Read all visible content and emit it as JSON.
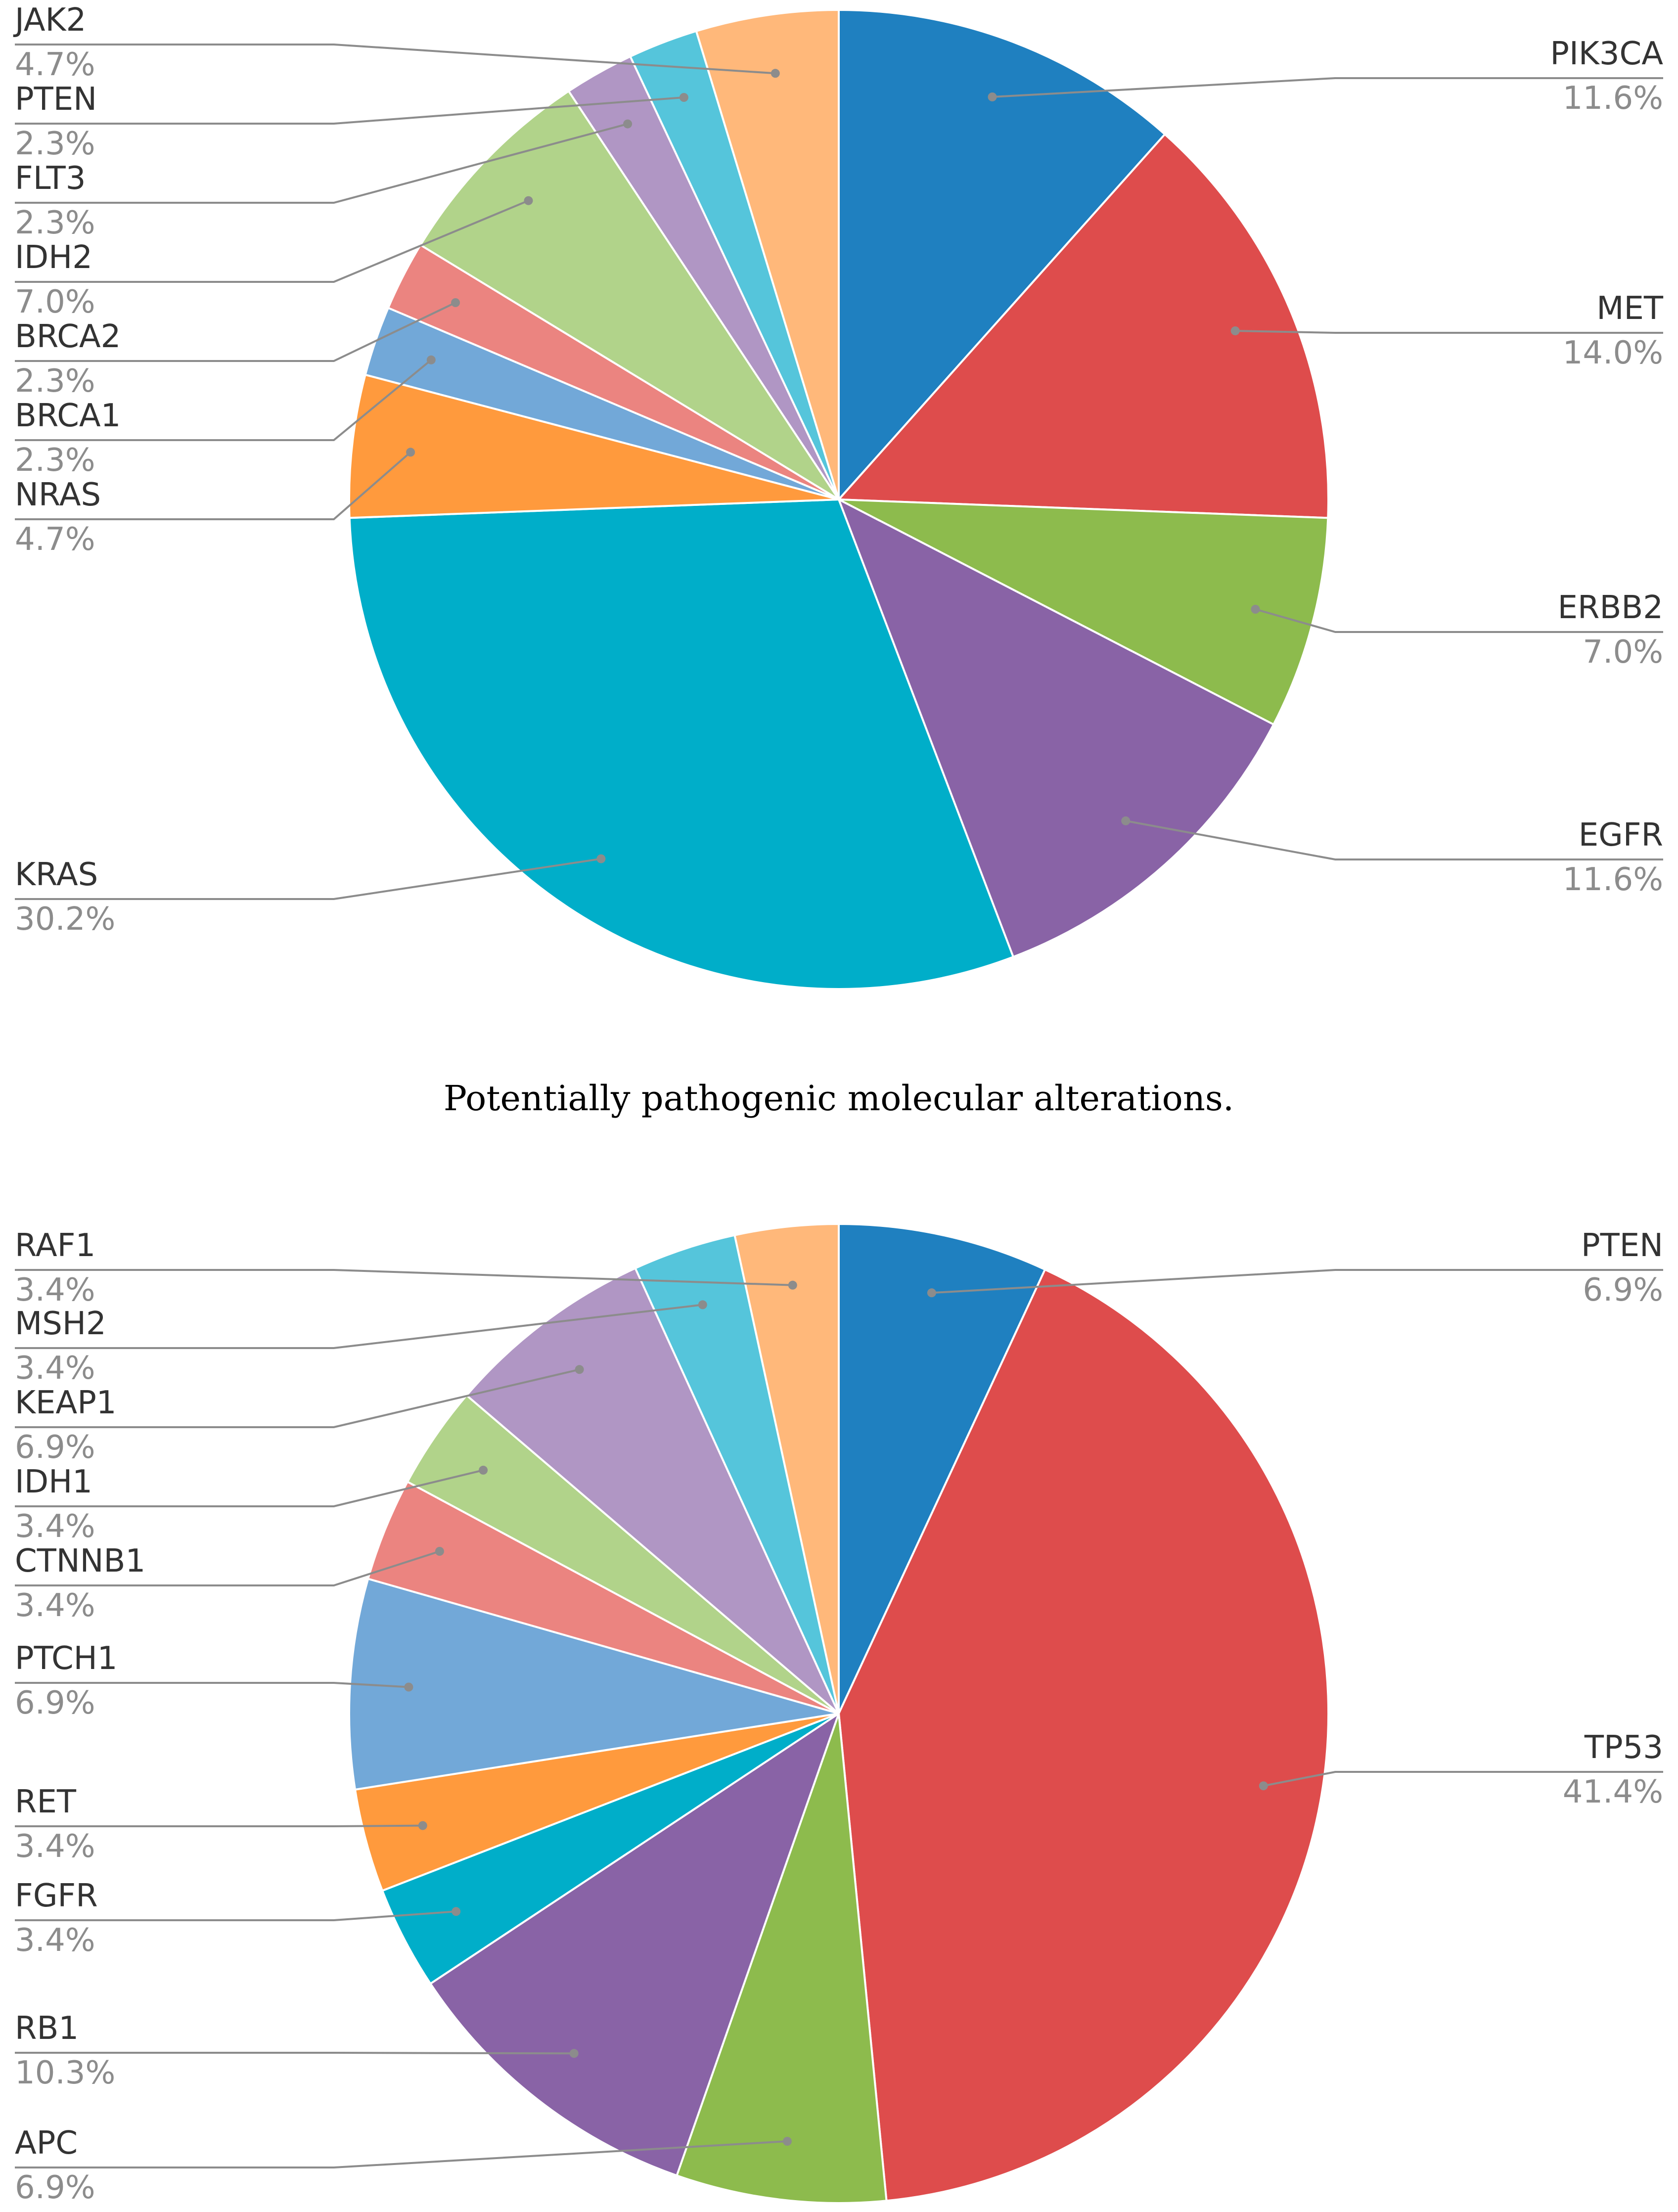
{
  "figure": {
    "caption": "Potentially pathogenic molecular alterations."
  },
  "chart_data": [
    {
      "type": "pie",
      "title": "",
      "slices": [
        {
          "label": "PIK3CA",
          "value": 11.6,
          "display": "11.6%",
          "color": "#1f80c0"
        },
        {
          "label": "MET",
          "value": 14.0,
          "display": "14.0%",
          "color": "#de4c4c"
        },
        {
          "label": "ERBB2",
          "value": 7.0,
          "display": "7.0%",
          "color": "#8dbb4d"
        },
        {
          "label": "EGFR",
          "value": 11.6,
          "display": "11.6%",
          "color": "#8963a6"
        },
        {
          "label": "KRAS",
          "value": 30.2,
          "display": "30.2%",
          "color": "#00aec9"
        },
        {
          "label": "NRAS",
          "value": 4.7,
          "display": "4.7%",
          "color": "#ff9a3d"
        },
        {
          "label": "BRCA1",
          "value": 2.3,
          "display": "2.3%",
          "color": "#72a8d8"
        },
        {
          "label": "BRCA2",
          "value": 2.3,
          "display": "2.3%",
          "color": "#eb8480"
        },
        {
          "label": "IDH2",
          "value": 7.0,
          "display": "7.0%",
          "color": "#b1d38a"
        },
        {
          "label": "FLT3",
          "value": 2.3,
          "display": "2.3%",
          "color": "#b096c4"
        },
        {
          "label": "PTEN",
          "value": 2.3,
          "display": "2.3%",
          "color": "#55c5db"
        },
        {
          "label": "JAK2",
          "value": 4.7,
          "display": "4.7%",
          "color": "#ffb87a"
        }
      ]
    },
    {
      "type": "pie",
      "title": "",
      "slices": [
        {
          "label": "PTEN",
          "value": 6.9,
          "display": "6.9%",
          "color": "#1f80c0"
        },
        {
          "label": "TP53",
          "value": 41.4,
          "display": "41.4%",
          "color": "#de4c4c"
        },
        {
          "label": "APC",
          "value": 6.9,
          "display": "6.9%",
          "color": "#8dbb4d"
        },
        {
          "label": "RB1",
          "value": 10.3,
          "display": "10.3%",
          "color": "#8963a6"
        },
        {
          "label": "FGFR",
          "value": 3.4,
          "display": "3.4%",
          "color": "#00aec9"
        },
        {
          "label": "RET",
          "value": 3.4,
          "display": "3.4%",
          "color": "#ff9a3d"
        },
        {
          "label": "PTCH1",
          "value": 6.9,
          "display": "6.9%",
          "color": "#72a8d8"
        },
        {
          "label": "CTNNB1",
          "value": 3.4,
          "display": "3.4%",
          "color": "#eb8480"
        },
        {
          "label": "IDH1",
          "value": 3.4,
          "display": "3.4%",
          "color": "#b1d38a"
        },
        {
          "label": "KEAP1",
          "value": 6.9,
          "display": "6.9%",
          "color": "#b096c4"
        },
        {
          "label": "MSH2",
          "value": 3.4,
          "display": "3.4%",
          "color": "#55c5db"
        },
        {
          "label": "RAF1",
          "value": 3.4,
          "display": "3.4%",
          "color": "#ffb87a"
        }
      ]
    }
  ]
}
